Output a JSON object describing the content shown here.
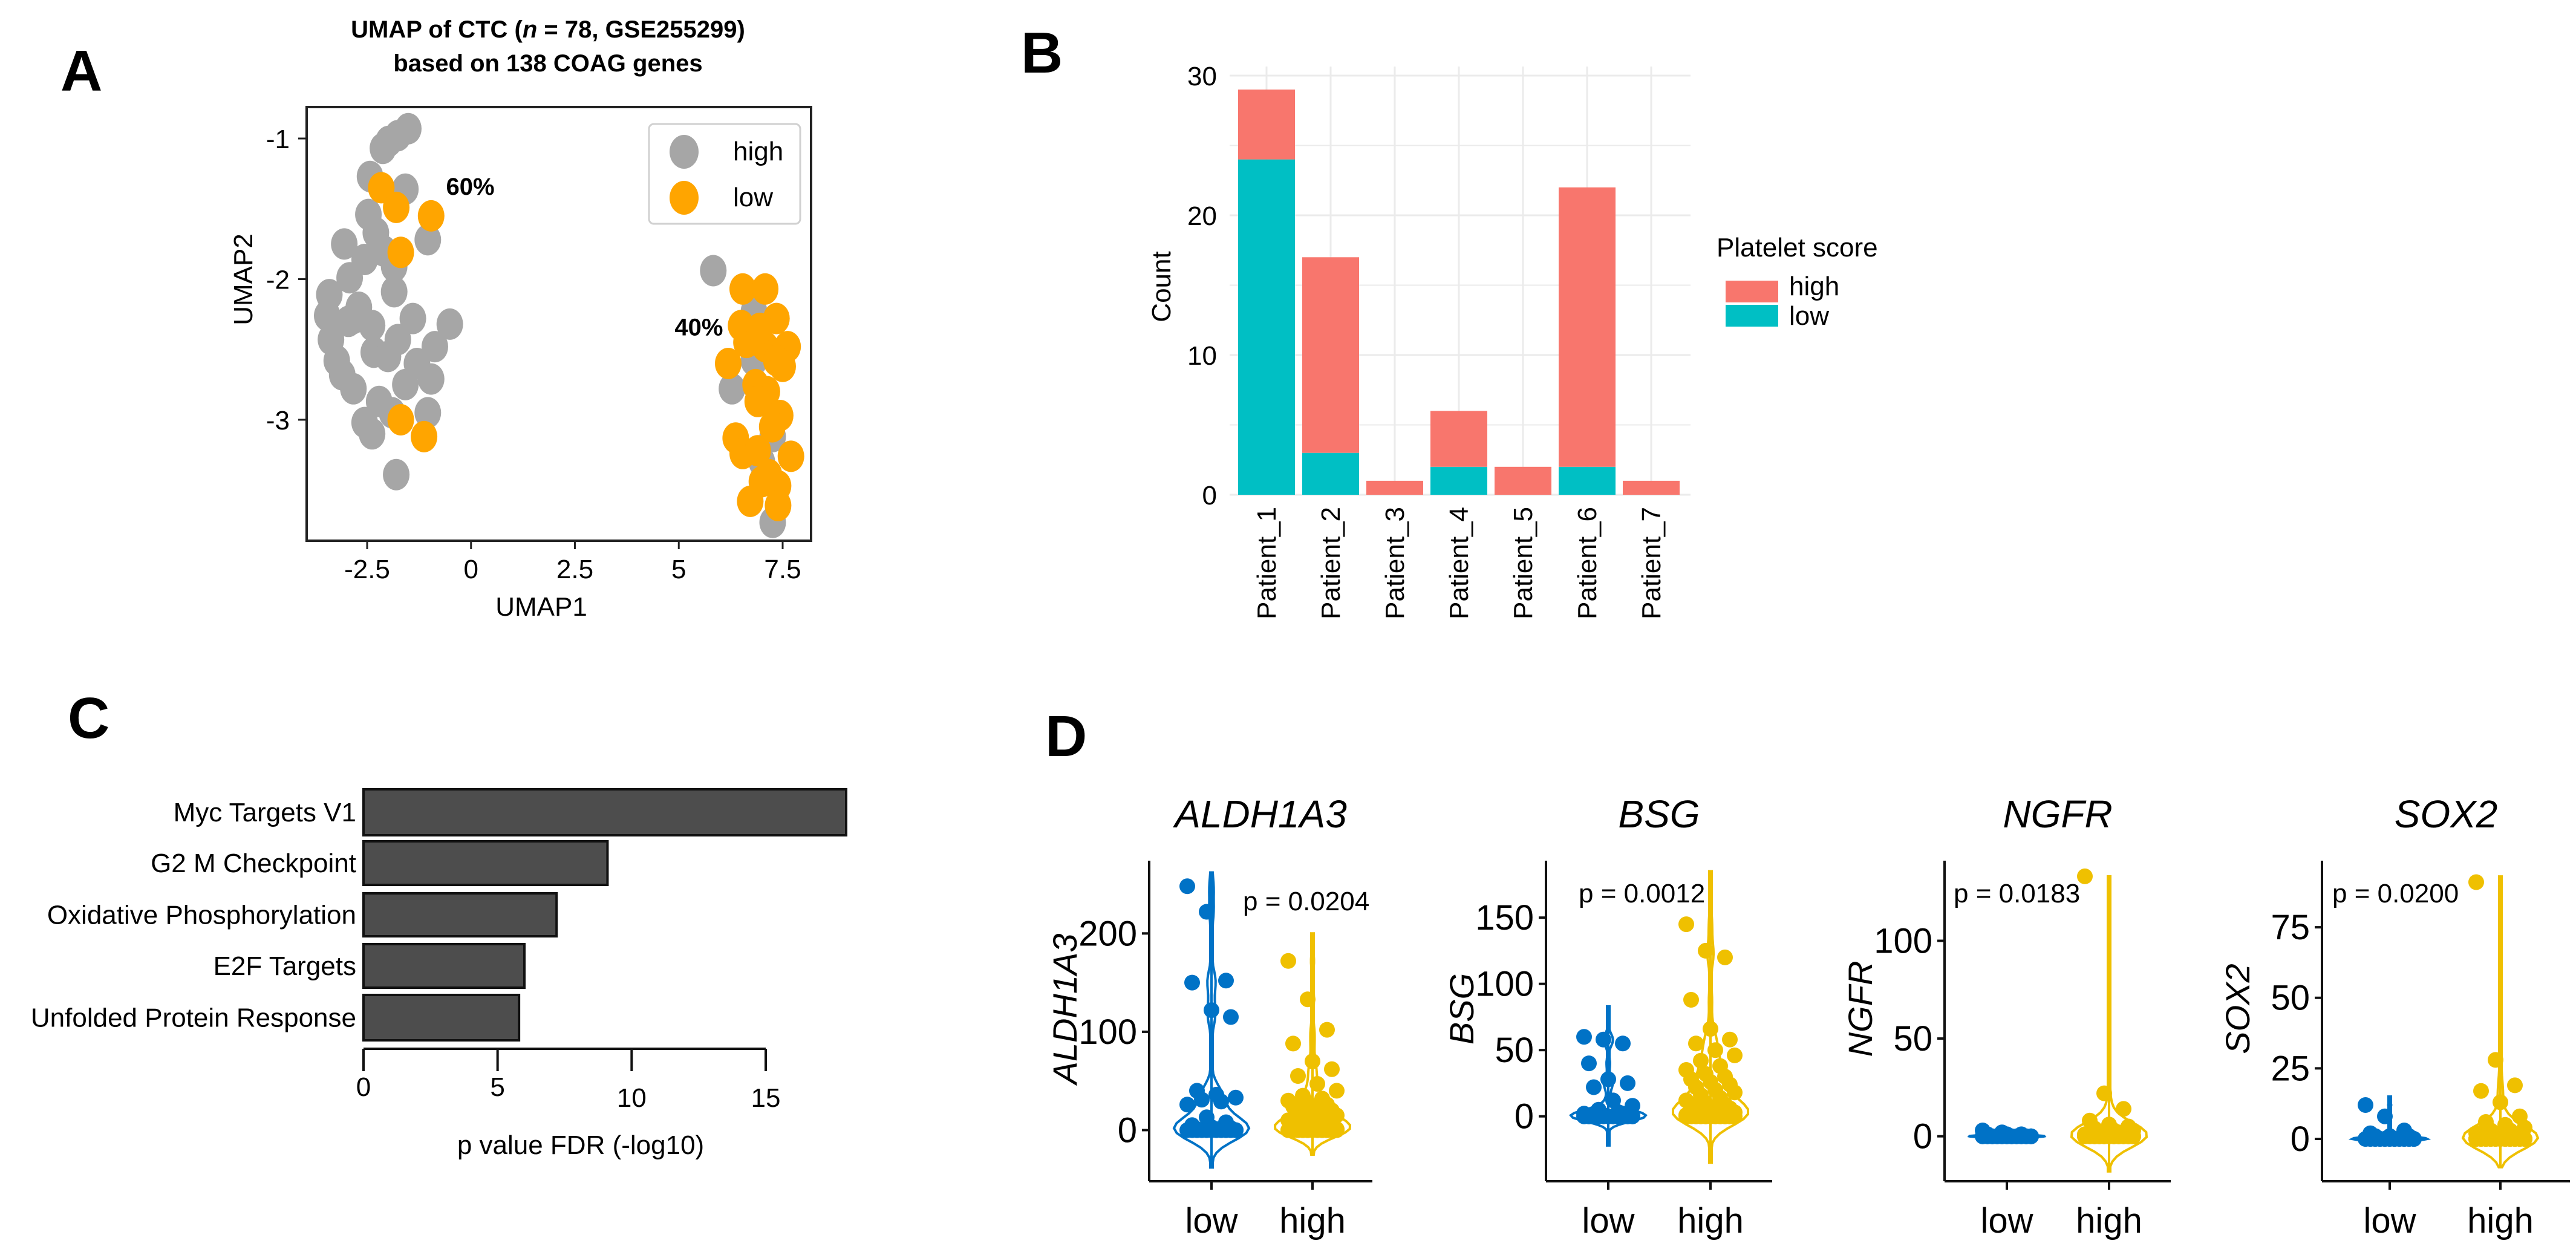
{
  "figure": {
    "panel_labels": [
      "A",
      "B",
      "C",
      "D"
    ]
  },
  "chart_data": [
    {
      "id": "A",
      "type": "scatter",
      "title_line1_pre": "UMAP of CTC (",
      "title_italic": "n",
      "title_line1_post": " = 78, GSE255299)",
      "title_line2": "based on 138 COAG genes",
      "xlabel": "UMAP1",
      "ylabel": "UMAP2",
      "xlim": [
        -3.9,
        8.0
      ],
      "ylim": [
        -3.85,
        -0.75
      ],
      "xticks": [
        -2.5,
        0,
        2.5,
        5,
        7.5
      ],
      "xtick_labels": [
        "-2.5",
        "0",
        "2.5",
        "5",
        "7.5"
      ],
      "yticks": [
        -1,
        -2,
        -3
      ],
      "ytick_labels": [
        "-1",
        "-2",
        "-3"
      ],
      "legend": {
        "position": "top-right",
        "entries": [
          {
            "label": "high",
            "color": "#A6A6A6"
          },
          {
            "label": "low",
            "color": "#FFA500"
          }
        ]
      },
      "annotations": [
        {
          "text": "60%",
          "x": -0.6,
          "y": -1.4
        },
        {
          "text": "40%",
          "x": 4.9,
          "y": -2.4
        }
      ],
      "series": [
        {
          "name": "high",
          "color": "#A6A6A6",
          "points": [
            [
              -1.51,
              -0.93
            ],
            [
              -1.76,
              -0.98
            ],
            [
              -1.98,
              -1.02
            ],
            [
              -2.12,
              -1.07
            ],
            [
              -2.43,
              -1.27
            ],
            [
              -1.58,
              -1.36
            ],
            [
              -2.47,
              -1.54
            ],
            [
              -2.29,
              -1.67
            ],
            [
              -3.05,
              -1.75
            ],
            [
              -1.04,
              -1.72
            ],
            [
              -2.56,
              -1.86
            ],
            [
              -1.85,
              -1.91
            ],
            [
              -2.92,
              -1.99
            ],
            [
              -1.85,
              -2.09
            ],
            [
              -3.41,
              -2.11
            ],
            [
              -3.46,
              -2.26
            ],
            [
              -2.83,
              -2.28
            ],
            [
              -2.38,
              -2.33
            ],
            [
              -1.4,
              -2.28
            ],
            [
              -0.51,
              -2.32
            ],
            [
              -3.37,
              -2.43
            ],
            [
              -1.76,
              -2.43
            ],
            [
              -2.34,
              -2.52
            ],
            [
              -0.87,
              -2.48
            ],
            [
              -3.23,
              -2.58
            ],
            [
              -3.1,
              -2.68
            ],
            [
              -2.83,
              -2.78
            ],
            [
              -1.58,
              -2.75
            ],
            [
              -0.96,
              -2.71
            ],
            [
              -2.21,
              -2.87
            ],
            [
              -2.56,
              -3.02
            ],
            [
              -1.04,
              -2.95
            ],
            [
              -2.38,
              -3.1
            ],
            [
              -1.8,
              -3.39
            ],
            [
              -2.7,
              -2.2
            ],
            [
              -2.1,
              -1.8
            ],
            [
              -1.3,
              -2.6
            ],
            [
              -2.0,
              -2.55
            ],
            [
              -1.9,
              -2.95
            ],
            [
              -2.95,
              -2.3
            ],
            [
              5.83,
              -1.94
            ],
            [
              6.81,
              -2.23
            ],
            [
              6.81,
              -2.58
            ],
            [
              6.28,
              -2.78
            ],
            [
              7.26,
              -3.12
            ],
            [
              7.26,
              -3.73
            ],
            [
              7.0,
              -3.3
            ]
          ]
        },
        {
          "name": "low",
          "color": "#FFA500",
          "points": [
            [
              -2.16,
              -1.35
            ],
            [
              -1.8,
              -1.49
            ],
            [
              -0.96,
              -1.55
            ],
            [
              -1.69,
              -1.81
            ],
            [
              -1.69,
              -3.0
            ],
            [
              -1.13,
              -3.12
            ],
            [
              6.54,
              -2.07
            ],
            [
              7.08,
              -2.07
            ],
            [
              7.35,
              -2.28
            ],
            [
              6.5,
              -2.33
            ],
            [
              7.62,
              -2.48
            ],
            [
              7.08,
              -2.48
            ],
            [
              6.63,
              -2.45
            ],
            [
              6.19,
              -2.6
            ],
            [
              7.35,
              -2.58
            ],
            [
              6.85,
              -2.75
            ],
            [
              7.12,
              -2.8
            ],
            [
              6.9,
              -2.87
            ],
            [
              7.44,
              -2.97
            ],
            [
              6.37,
              -3.13
            ],
            [
              6.54,
              -3.24
            ],
            [
              6.9,
              -3.22
            ],
            [
              7.7,
              -3.26
            ],
            [
              7.17,
              -3.39
            ],
            [
              7.0,
              -3.44
            ],
            [
              7.39,
              -3.47
            ],
            [
              6.72,
              -3.58
            ],
            [
              7.39,
              -3.61
            ],
            [
              7.5,
              -2.62
            ],
            [
              6.95,
              -2.35
            ],
            [
              7.25,
              -3.05
            ]
          ]
        }
      ]
    },
    {
      "id": "B",
      "type": "bar",
      "stacked": true,
      "categories": [
        "Patient_1",
        "Patient_2",
        "Patient_3",
        "Patient_4",
        "Patient_5",
        "Patient_6",
        "Patient_7"
      ],
      "series": [
        {
          "name": "low",
          "color": "#00BFC4",
          "values": [
            24,
            3,
            0,
            2,
            0,
            2,
            0
          ]
        },
        {
          "name": "high",
          "color": "#F8766D",
          "values": [
            5,
            14,
            1,
            4,
            2,
            20,
            1
          ]
        }
      ],
      "xlabel": "",
      "ylabel": "Count",
      "ylim": [
        0,
        30
      ],
      "yticks": [
        0,
        10,
        20,
        30
      ],
      "ytick_labels": [
        "0",
        "10",
        "20",
        "30"
      ],
      "grid": true,
      "legend": {
        "title": "Platelet score",
        "position": "right",
        "entries": [
          {
            "label": "high",
            "color": "#F8766D"
          },
          {
            "label": "low",
            "color": "#00BFC4"
          }
        ]
      }
    },
    {
      "id": "C",
      "type": "bar",
      "orientation": "horizontal",
      "categories": [
        "Myc Targets V1",
        "G2 M Checkpoint",
        "Oxidative Phosphorylation",
        "E2F Targets",
        "Unfolded Protein Response"
      ],
      "values": [
        18.0,
        9.1,
        7.2,
        6.0,
        5.8
      ],
      "color": "#4D4D4D",
      "xlabel": "p value FDR (-log10)",
      "ylabel": "",
      "xlim": [
        0,
        18.2
      ],
      "xticks": [
        0,
        5,
        10,
        15
      ],
      "xtick_labels": [
        "0",
        "5",
        "10",
        "15"
      ]
    },
    {
      "id": "D",
      "type": "violin",
      "groups": [
        "low",
        "high"
      ],
      "group_colors": {
        "low": "#0072C6",
        "high": "#EFC000"
      },
      "xtick_labels": [
        "low",
        "high"
      ],
      "subplots": [
        {
          "gene": "ALDH1A3",
          "ylabel": "ALDH1A3",
          "pvalue": "p = 0.0204",
          "ylim": [
            -52,
            274
          ],
          "yticks": [
            0,
            100,
            200
          ],
          "ytick_labels": [
            "0",
            "100",
            "200"
          ],
          "violin_range": {
            "low": [
              -38,
              262
            ],
            "high": [
              -25,
              200
            ]
          },
          "points": {
            "low": [
              248,
              222,
              152,
              150,
              122,
              115,
              40,
              36,
              33,
              31,
              29,
              26,
              13,
              8,
              5,
              3,
              2,
              1,
              1,
              0,
              0,
              0,
              0,
              0,
              0,
              0,
              0,
              0,
              0,
              0,
              0
            ],
            "high": [
              172,
              133,
              102,
              88,
              70,
              62,
              55,
              47,
              40,
              35,
              32,
              30,
              28,
              26,
              24,
              22,
              20,
              18,
              16,
              15,
              13,
              12,
              10,
              9,
              8,
              6,
              5,
              4,
              3,
              2,
              1,
              0,
              0,
              0,
              0,
              0,
              0,
              0,
              0,
              0,
              0,
              0,
              0,
              0,
              0,
              0,
              0
            ]
          }
        },
        {
          "gene": "BSG",
          "ylabel": "BSG",
          "pvalue": "p = 0.0012",
          "ylim": [
            -49,
            193
          ],
          "yticks": [
            0,
            50,
            100,
            150
          ],
          "ytick_labels": [
            "0",
            "50",
            "100",
            "150"
          ],
          "violin_range": {
            "low": [
              -22,
              83
            ],
            "high": [
              -35,
              185
            ]
          },
          "points": {
            "low": [
              60,
              58,
              55,
              40,
              28,
              25,
              22,
              12,
              8,
              5,
              3,
              2,
              1,
              1,
              0,
              0,
              0,
              0,
              0,
              0,
              0,
              0,
              0,
              0,
              0,
              0,
              0,
              0,
              0,
              0,
              0
            ],
            "high": [
              145,
              125,
              120,
              88,
              66,
              58,
              55,
              50,
              46,
              42,
              38,
              35,
              32,
              30,
              28,
              26,
              24,
              22,
              20,
              18,
              16,
              14,
              12,
              10,
              9,
              8,
              7,
              6,
              5,
              4,
              3,
              2,
              1,
              1,
              0,
              0,
              0,
              0,
              0,
              0,
              0,
              0,
              0,
              0,
              0,
              0,
              0
            ]
          }
        },
        {
          "gene": "NGFR",
          "ylabel": "NGFR",
          "pvalue": "p = 0.0183",
          "ylim": [
            -23,
            141
          ],
          "yticks": [
            0,
            50,
            100
          ],
          "ytick_labels": [
            "0",
            "50",
            "100"
          ],
          "violin_range": {
            "low": [
              -3,
              3
            ],
            "high": [
              -18,
              133
            ]
          },
          "points": {
            "low": [
              3,
              2,
              1,
              1,
              1,
              0,
              0,
              0,
              0,
              0,
              0,
              0,
              0,
              0,
              0,
              0,
              0,
              0,
              0,
              0,
              0,
              0,
              0,
              0,
              0,
              0,
              0,
              0,
              0,
              0,
              0
            ],
            "high": [
              133,
              22,
              14,
              8,
              6,
              5,
              4,
              3,
              3,
              2,
              2,
              1,
              1,
              1,
              1,
              0,
              0,
              0,
              0,
              0,
              0,
              0,
              0,
              0,
              0,
              0,
              0,
              0,
              0,
              0,
              0,
              0,
              0,
              0,
              0,
              0,
              0,
              0,
              0,
              0,
              0,
              0,
              0,
              0,
              0,
              0,
              0
            ]
          }
        },
        {
          "gene": "SOX2",
          "ylabel": "SOX2",
          "pvalue": "p = 0.0200",
          "ylim": [
            -15,
            98.6
          ],
          "yticks": [
            0,
            25,
            50,
            75
          ],
          "ytick_labels": [
            "0",
            "25",
            "50",
            "75"
          ],
          "violin_range": {
            "low": [
              -2,
              15
            ],
            "high": [
              -10,
              93
            ]
          },
          "points": {
            "low": [
              12,
              8,
              3,
              2,
              1,
              1,
              1,
              0,
              0,
              0,
              0,
              0,
              0,
              0,
              0,
              0,
              0,
              0,
              0,
              0,
              0,
              0,
              0,
              0,
              0,
              0,
              0,
              0,
              0,
              0,
              0
            ],
            "high": [
              91,
              28,
              19,
              17,
              13,
              8,
              6,
              5,
              4,
              3,
              3,
              2,
              2,
              1,
              1,
              1,
              0,
              0,
              0,
              0,
              0,
              0,
              0,
              0,
              0,
              0,
              0,
              0,
              0,
              0,
              0,
              0,
              0,
              0,
              0,
              0,
              0,
              0,
              0,
              0,
              0,
              0,
              0,
              0,
              0,
              0,
              0
            ]
          }
        }
      ]
    }
  ]
}
